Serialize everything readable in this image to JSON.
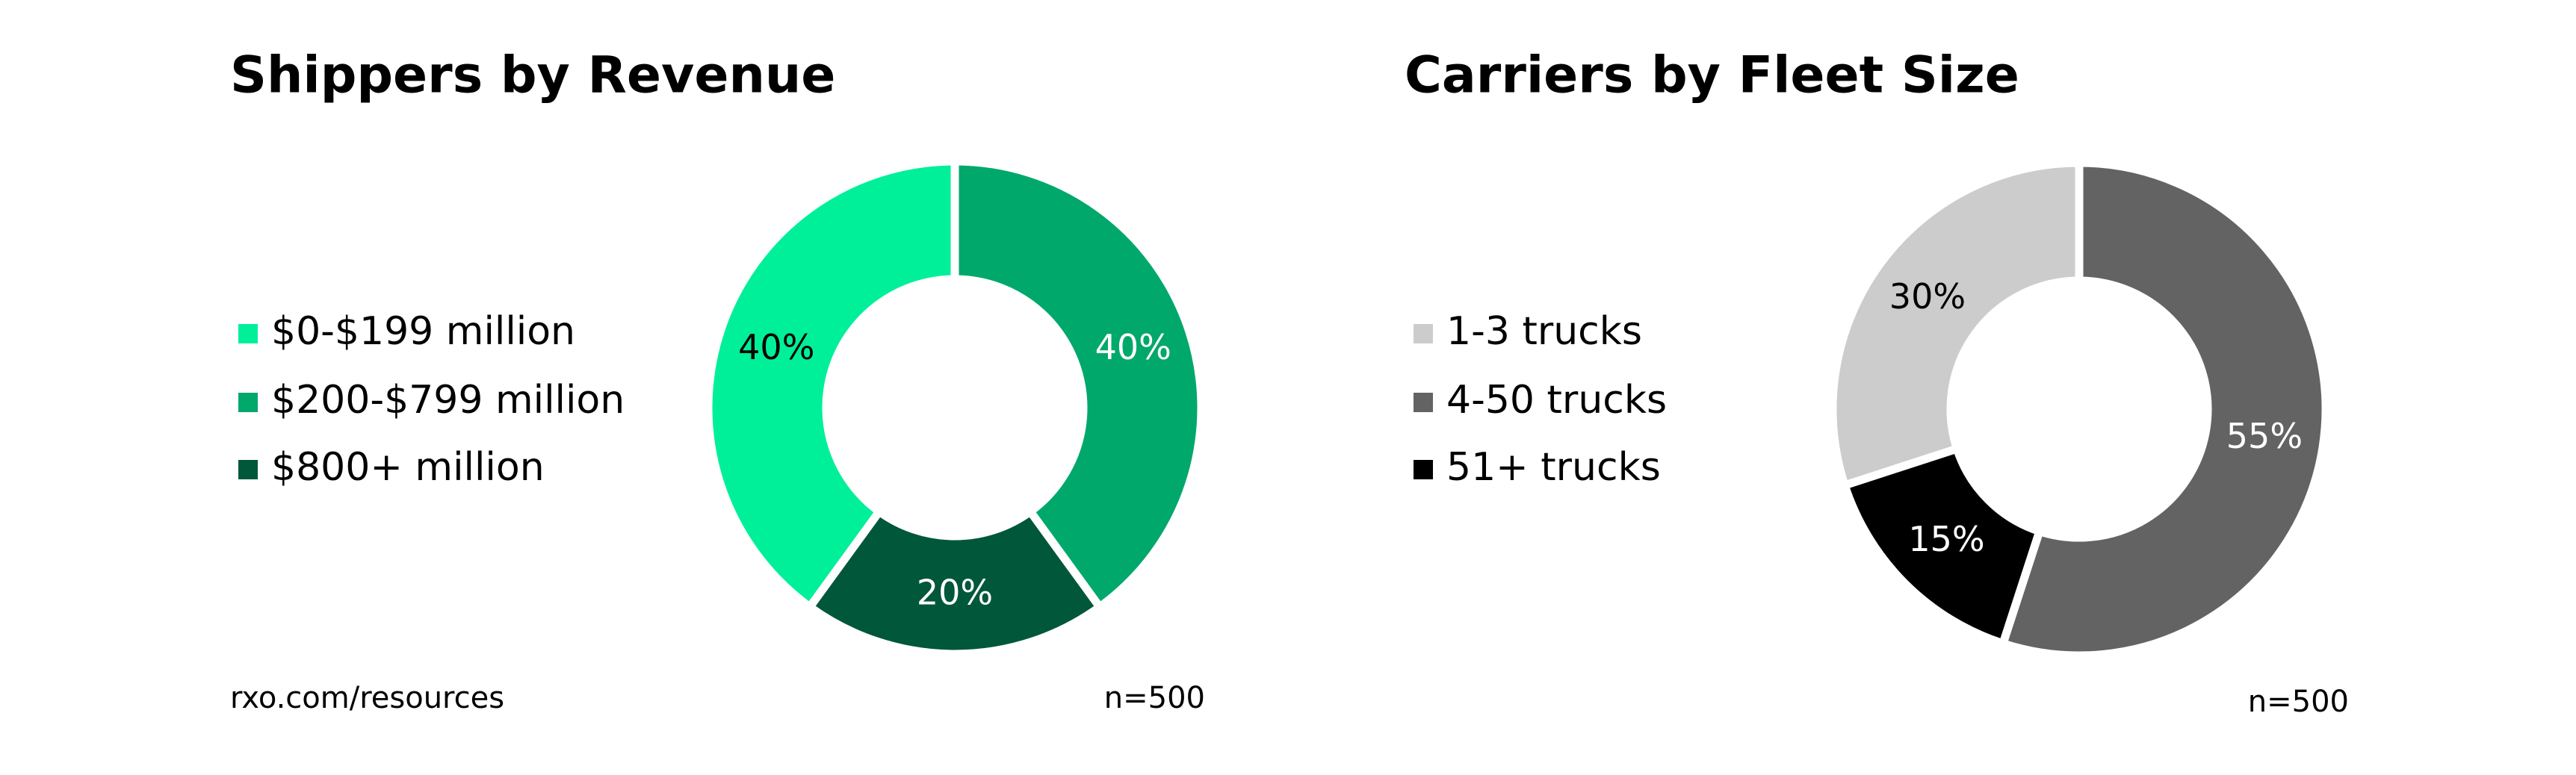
{
  "chart_data": [
    {
      "type": "pie",
      "title": "Shippers by Revenue",
      "categories": [
        "$0-$199 million",
        "$200-$799 million",
        "$800+ million"
      ],
      "values": [
        40,
        40,
        20
      ],
      "value_labels": [
        "40%",
        "40%",
        "20%"
      ],
      "colors": [
        "#00f09a",
        "#00a86b",
        "#00573a"
      ],
      "note": "n=500"
    },
    {
      "type": "pie",
      "title": "Carriers by Fleet Size",
      "categories": [
        "1-3 trucks",
        "4-50 trucks",
        "51+ trucks"
      ],
      "values": [
        30,
        55,
        15
      ],
      "value_labels": [
        "30%",
        "55%",
        "15%"
      ],
      "colors": [
        "#cccccc",
        "#636363",
        "#000000"
      ],
      "note": "n=500"
    }
  ],
  "footer": "rxo.com/resources"
}
